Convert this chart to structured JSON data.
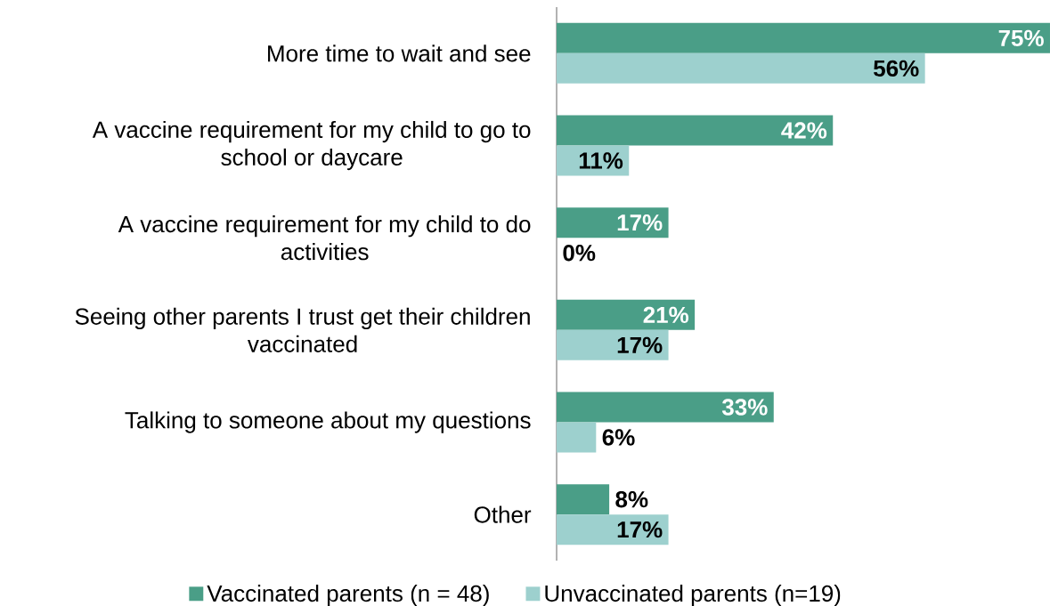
{
  "chart_data": {
    "type": "bar",
    "orientation": "horizontal",
    "categories": [
      "More time to wait and see",
      "A vaccine requirement for my child to go to school or daycare",
      "A vaccine requirement for my child to do activities",
      "Seeing other parents I trust get their children vaccinated",
      "Talking to someone about my questions",
      "Other"
    ],
    "series": [
      {
        "name": "Vaccinated parents (n = 48)",
        "color": "#4a9e87",
        "values": [
          75,
          42,
          17,
          21,
          33,
          8
        ],
        "value_labels": [
          "75%",
          "42%",
          "17%",
          "21%",
          "33%",
          "8%"
        ]
      },
      {
        "name": "Unvaccinated parents (n=19)",
        "color": "#9dd0ce",
        "values": [
          56,
          11,
          0,
          17,
          6,
          17
        ],
        "value_labels": [
          "56%",
          "11%",
          "0%",
          "17%",
          "6%",
          "17%"
        ]
      }
    ],
    "xlim": [
      0,
      75
    ],
    "legend": "bottom"
  }
}
